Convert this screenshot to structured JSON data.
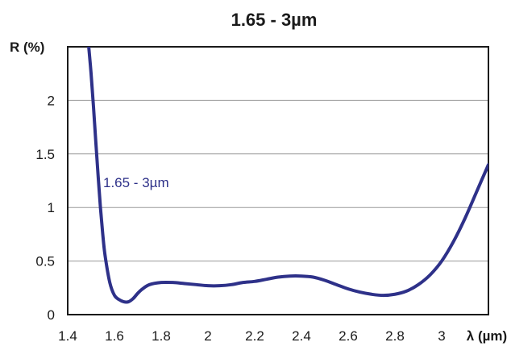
{
  "chart_data": {
    "type": "line",
    "title": "1.65 - 3µm",
    "xlabel": "λ (µm)",
    "ylabel": "R (%)",
    "xlim": [
      1.4,
      3.2
    ],
    "ylim": [
      0,
      2.5
    ],
    "x_ticks": [
      1.4,
      1.6,
      1.8,
      2.0,
      2.2,
      2.4,
      2.6,
      2.8,
      3.0
    ],
    "x_tick_labels": [
      "1.4",
      "1.6",
      "1.8",
      "2",
      "2.2",
      "2.4",
      "2.6",
      "2.8",
      "3"
    ],
    "y_ticks": [
      0,
      0.5,
      1.0,
      1.5,
      2.0
    ],
    "y_tick_labels": [
      "0",
      "0.5",
      "1",
      "1.5",
      "2"
    ],
    "grid": "horizontal",
    "legend": "none",
    "annotation": "1.65 - 3µm",
    "series": [
      {
        "color": "#2e3189",
        "x": [
          1.49,
          1.5,
          1.51,
          1.52,
          1.53,
          1.54,
          1.55,
          1.56,
          1.58,
          1.6,
          1.62,
          1.64,
          1.66,
          1.68,
          1.7,
          1.72,
          1.75,
          1.8,
          1.85,
          1.9,
          1.95,
          2.0,
          2.05,
          2.1,
          2.15,
          2.2,
          2.25,
          2.3,
          2.35,
          2.4,
          2.45,
          2.5,
          2.55,
          2.6,
          2.65,
          2.7,
          2.75,
          2.8,
          2.85,
          2.9,
          2.95,
          3.0,
          3.05,
          3.1,
          3.15,
          3.2
        ],
        "y": [
          2.5,
          2.25,
          1.95,
          1.62,
          1.3,
          1.0,
          0.75,
          0.55,
          0.3,
          0.18,
          0.14,
          0.12,
          0.12,
          0.15,
          0.2,
          0.24,
          0.28,
          0.3,
          0.3,
          0.29,
          0.28,
          0.27,
          0.27,
          0.28,
          0.3,
          0.31,
          0.33,
          0.35,
          0.36,
          0.36,
          0.35,
          0.32,
          0.28,
          0.24,
          0.21,
          0.19,
          0.18,
          0.19,
          0.22,
          0.28,
          0.37,
          0.5,
          0.68,
          0.9,
          1.15,
          1.4
        ]
      }
    ]
  }
}
